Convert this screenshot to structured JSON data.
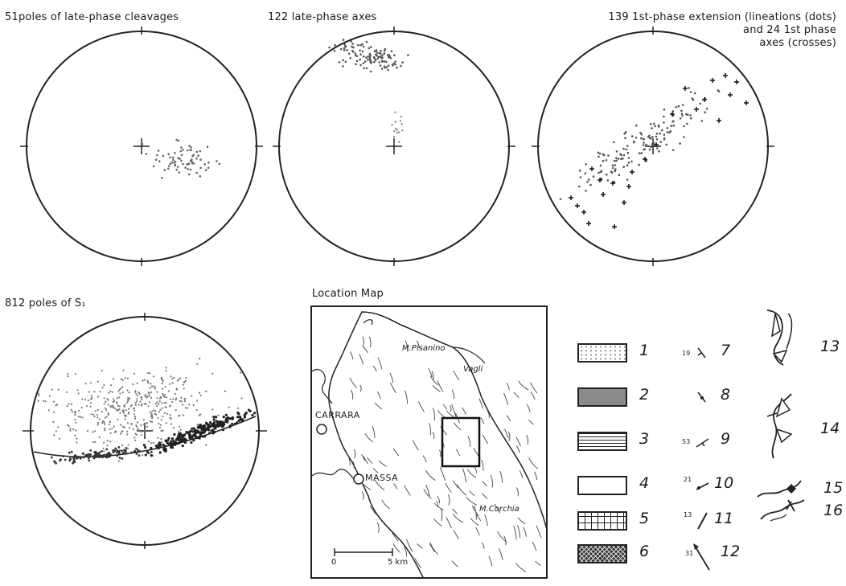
{
  "nets": [
    {
      "id": "late-cleavage-poles",
      "title": "51poles of late-phase cleavages"
    },
    {
      "id": "late-phase-axes",
      "title": "122 late-phase axes"
    },
    {
      "id": "first-phase-extension",
      "title_line1": "139 1st-phase extension (lineations (dots)",
      "title_line2": "and 24 1st phase",
      "title_line3": "axes (crosses)"
    },
    {
      "id": "s1-poles",
      "title": "812 poles of S₁"
    }
  ],
  "map": {
    "title": "Location Map",
    "labels": {
      "pisanino": "M.Pisanino",
      "vagli": "Vagli",
      "carrara": "CARRARA",
      "massa": "MASSA",
      "corchia": "M.Corchia"
    },
    "scale": {
      "zero": "0",
      "end": "5 km"
    }
  },
  "legend": {
    "boxes": [
      "1",
      "2",
      "3",
      "4",
      "5",
      "6"
    ],
    "symbols": [
      {
        "num": "7",
        "dip": "19"
      },
      {
        "num": "8",
        "dip": ""
      },
      {
        "num": "9",
        "dip": "53"
      },
      {
        "num": "10",
        "dip": "21"
      },
      {
        "num": "11",
        "dip": "13"
      },
      {
        "num": "12",
        "dip": "31"
      }
    ],
    "folds": [
      "13",
      "14",
      "15",
      "16"
    ]
  }
}
